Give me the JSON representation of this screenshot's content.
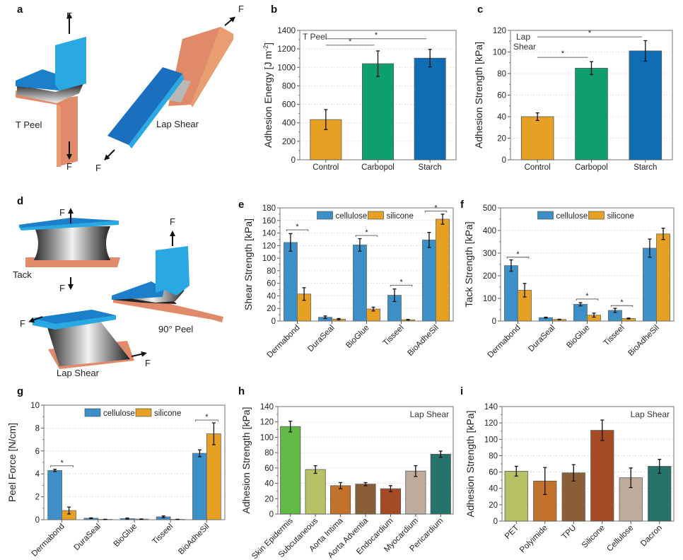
{
  "panel_labels": [
    "a",
    "b",
    "c",
    "d",
    "e",
    "f",
    "g",
    "h",
    "i"
  ],
  "diagrams": {
    "a": {
      "labels": {
        "t_peel": "T Peel",
        "lap_shear": "Lap Shear",
        "force": "F"
      }
    },
    "d": {
      "labels": {
        "tack": "Tack",
        "peel90": "90° Peel",
        "lap_shear": "Lap Shear",
        "force": "F"
      }
    }
  },
  "colors": {
    "orange": "#e6a024",
    "green": "#0e9e70",
    "blue": "#0f6db3",
    "cellulose": "#3d8fc8",
    "silicone": "#e6a024"
  },
  "chart_data": [
    {
      "id": "b",
      "type": "bar",
      "title": "",
      "annotation": "T Peel",
      "ylabel": "Adhesion Energy [J m-2]",
      "ylim": [
        0,
        1400
      ],
      "yticks": [
        0,
        200,
        400,
        600,
        800,
        1000,
        1200,
        1400
      ],
      "categories": [
        "Control",
        "Carbopol",
        "Starch"
      ],
      "values": [
        435,
        1040,
        1100
      ],
      "errors": [
        108,
        138,
        95
      ],
      "bar_colors": [
        "#e6a024",
        "#0e9e70",
        "#0f6db3"
      ],
      "significance": [
        {
          "from": 0,
          "to": 1,
          "label": "*",
          "y": 1240
        },
        {
          "from": 0,
          "to": 2,
          "label": "*",
          "y": 1310
        }
      ],
      "grid": true
    },
    {
      "id": "c",
      "type": "bar",
      "annotation": "Lap Shear",
      "ylabel": "Adhesion Strength [kPa]",
      "ylim": [
        0,
        120
      ],
      "yticks": [
        0,
        20,
        40,
        60,
        80,
        100,
        120
      ],
      "categories": [
        "Control",
        "Carbopol",
        "Starch"
      ],
      "values": [
        40,
        85,
        101
      ],
      "errors": [
        3.5,
        6,
        9.5
      ],
      "bar_colors": [
        "#e6a024",
        "#0e9e70",
        "#0f6db3"
      ],
      "significance": [
        {
          "from": 0,
          "to": 1,
          "label": "*",
          "y": 95
        },
        {
          "from": 0,
          "to": 2,
          "label": "*",
          "y": 114
        }
      ],
      "grid": true
    },
    {
      "id": "e",
      "type": "bar",
      "ylabel": "Shear Strength [kPa]",
      "ylim": [
        0,
        180
      ],
      "yticks": [
        0,
        20,
        40,
        60,
        80,
        100,
        120,
        140,
        160,
        180
      ],
      "categories": [
        "Dermabond",
        "DuraSeal",
        "BioGlue",
        "Tisseel",
        "BioAdheSil"
      ],
      "series": [
        {
          "name": "cellulose",
          "values": [
            125,
            6,
            121,
            41,
            129
          ],
          "errors": [
            14,
            2,
            10,
            10,
            12
          ]
        },
        {
          "name": "silicone",
          "values": [
            43,
            3,
            19,
            2,
            162
          ],
          "errors": [
            10,
            1,
            3,
            0.5,
            8
          ]
        }
      ],
      "legend": "top-center",
      "significance": [
        {
          "cat": 0,
          "label": "*",
          "y": 145
        },
        {
          "cat": 2,
          "label": "*",
          "y": 136
        },
        {
          "cat": 3,
          "label": "*",
          "y": 57
        },
        {
          "cat": 4,
          "label": "*",
          "y": 175
        }
      ],
      "grid": true
    },
    {
      "id": "f",
      "type": "bar",
      "ylabel": "Tack Strength [kPa]",
      "ylim": [
        0,
        500
      ],
      "yticks": [
        0,
        100,
        200,
        300,
        400,
        500
      ],
      "categories": [
        "Dermabond",
        "DuraSeal",
        "BioGlue",
        "Tisseel",
        "BioAdheSil"
      ],
      "series": [
        {
          "name": "cellulose",
          "values": [
            245,
            15,
            74,
            47,
            322
          ],
          "errors": [
            25,
            2,
            7,
            9,
            40
          ]
        },
        {
          "name": "silicone",
          "values": [
            136,
            7,
            26,
            11,
            385
          ],
          "errors": [
            30,
            1,
            9,
            2,
            25
          ]
        }
      ],
      "legend": "top-center",
      "significance": [
        {
          "cat": 0,
          "label": "*",
          "y": 282
        },
        {
          "cat": 2,
          "label": "*",
          "y": 97
        },
        {
          "cat": 3,
          "label": "*",
          "y": 68
        }
      ],
      "grid": true
    },
    {
      "id": "g",
      "type": "bar",
      "ylabel": "Peel Force [N/cm]",
      "ylim": [
        0,
        10
      ],
      "yticks": [
        0,
        2,
        4,
        6,
        8,
        10
      ],
      "categories": [
        "Dermabond",
        "DuraSeal",
        "BioGlue",
        "Tisseel",
        "BioAdheSil"
      ],
      "series": [
        {
          "name": "cellulose",
          "values": [
            4.3,
            0.13,
            0.1,
            0.25,
            5.8
          ],
          "errors": [
            0.1,
            0.03,
            0.05,
            0.08,
            0.3
          ]
        },
        {
          "name": "silicone",
          "values": [
            0.8,
            0.03,
            0.05,
            0.03,
            7.5
          ],
          "errors": [
            0.3,
            0.01,
            0.02,
            0.01,
            0.95
          ]
        }
      ],
      "legend": "top-center",
      "significance": [
        {
          "cat": 0,
          "label": "*",
          "y": 4.7
        },
        {
          "cat": 4,
          "label": "*",
          "y": 8.7
        }
      ],
      "grid": true
    },
    {
      "id": "h",
      "type": "bar",
      "annotation": "Lap Shear",
      "ylabel": "Adhesion Strength [kPa]",
      "ylim": [
        0,
        140
      ],
      "yticks": [
        0,
        20,
        40,
        60,
        80,
        100,
        120,
        140
      ],
      "categories": [
        "Skin Epidermis",
        "Subcutaneous",
        "Aorta Intima",
        "Aorta Adventia",
        "Endocardium",
        "Myocardium",
        "Pericardium"
      ],
      "values": [
        114,
        58,
        37,
        39,
        33,
        56,
        78
      ],
      "errors": [
        7,
        5,
        4,
        2,
        4,
        7,
        4
      ],
      "bar_colors": [
        "#62b946",
        "#b8c065",
        "#c3722b",
        "#8a5e37",
        "#a44a25",
        "#bfab9c",
        "#27726a"
      ],
      "grid": true
    },
    {
      "id": "i",
      "type": "bar",
      "annotation": "Lap Shear",
      "ylabel": "Adhesion Strength [kPa]",
      "ylim": [
        0,
        140
      ],
      "yticks": [
        0,
        20,
        40,
        60,
        80,
        100,
        120,
        140
      ],
      "categories": [
        "PET",
        "Polyimide",
        "TPU",
        "Silicone",
        "Cellulose",
        "Dacron"
      ],
      "values": [
        61,
        49,
        59,
        111,
        53,
        67
      ],
      "errors": [
        6,
        16.5,
        10,
        12.5,
        12,
        8.5
      ],
      "bar_colors": [
        "#b8c065",
        "#c3722b",
        "#8a5e37",
        "#a44a25",
        "#bfab9c",
        "#27726a"
      ],
      "grid": true
    }
  ]
}
